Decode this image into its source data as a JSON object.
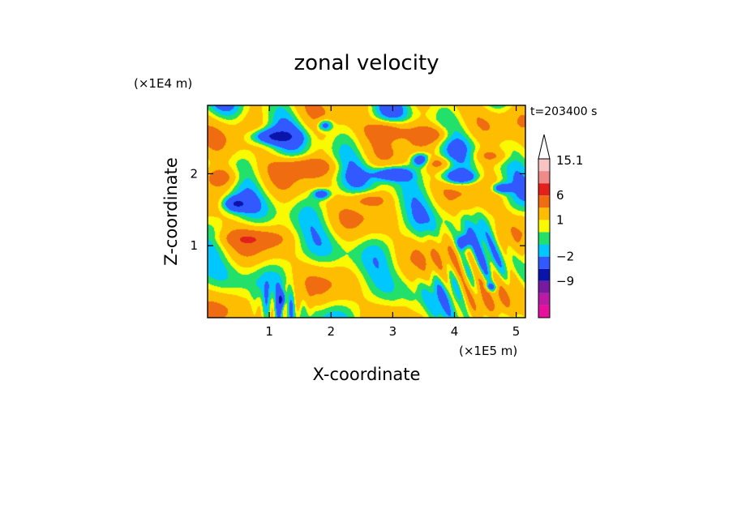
{
  "chart_data": {
    "type": "heatmap",
    "title": "zonal velocity",
    "xlabel": "X-coordinate",
    "ylabel": "Z-coordinate",
    "x_unit_label": "(×1E5 m)",
    "y_unit_label": "(×1E4 m)",
    "time_label": "t=203400 s",
    "xlim": [
      0,
      5.15
    ],
    "ylim": [
      0,
      2.95
    ],
    "x_ticks": [
      1,
      2,
      3,
      4,
      5
    ],
    "y_ticks": [
      1,
      2
    ],
    "colorbar": {
      "levels": [
        -15,
        -12,
        -9,
        -6,
        -2,
        -1,
        0,
        1,
        3,
        6,
        9,
        12,
        15.1
      ],
      "labels": [
        {
          "value": 15.1,
          "text": "15.1"
        },
        {
          "value": 6,
          "text": "6"
        },
        {
          "value": 1,
          "text": "1"
        },
        {
          "value": -2,
          "text": "−2"
        },
        {
          "value": -9,
          "text": "−9"
        }
      ],
      "colors": [
        "#e60f9e",
        "#bb1ba4",
        "#771a9f",
        "#0a14aa",
        "#3258ff",
        "#00c8ff",
        "#22e06a",
        "#f9f900",
        "#ffbd00",
        "#ef6d10",
        "#e2211c",
        "#ef8a8a",
        "#f7c4c4"
      ],
      "extend": "max"
    },
    "features": [
      {
        "kind": "neg",
        "x": 1.05,
        "z": 2.52,
        "rx": 0.35,
        "rz": 0.1,
        "v": -6
      },
      {
        "kind": "neg",
        "x": 1.9,
        "z": 2.68,
        "rx": 0.12,
        "rz": 0.08,
        "v": -5
      },
      {
        "kind": "neg",
        "x": 0.45,
        "z": 1.58,
        "rx": 0.2,
        "rz": 0.1,
        "v": -6
      },
      {
        "kind": "neg",
        "x": 1.85,
        "z": 1.72,
        "rx": 0.14,
        "rz": 0.07,
        "v": -5
      },
      {
        "kind": "neg",
        "x": 3.0,
        "z": 2.0,
        "rx": 0.3,
        "rz": 0.1,
        "v": -6
      },
      {
        "kind": "neg",
        "x": 3.45,
        "z": 2.2,
        "rx": 0.15,
        "rz": 0.1,
        "v": -6
      },
      {
        "kind": "neg",
        "x": 4.1,
        "z": 1.95,
        "rx": 0.3,
        "rz": 0.1,
        "v": -6
      },
      {
        "kind": "neg",
        "x": 4.75,
        "z": 1.8,
        "rx": 0.15,
        "rz": 0.07,
        "v": -5
      },
      {
        "kind": "neg",
        "x": 4.15,
        "z": 1.05,
        "rx": 0.1,
        "rz": 0.1,
        "v": -5
      },
      {
        "kind": "neg",
        "x": 1.2,
        "z": 0.25,
        "rx": 0.06,
        "rz": 0.1,
        "v": -5
      },
      {
        "kind": "neg",
        "x": 4.6,
        "z": 0.42,
        "rx": 0.1,
        "rz": 0.06,
        "v": -4
      },
      {
        "kind": "pos",
        "x": 2.95,
        "z": 2.62,
        "rx": 0.35,
        "rz": 0.14,
        "v": 5
      },
      {
        "kind": "pos",
        "x": 3.65,
        "z": 2.55,
        "rx": 0.3,
        "rz": 0.12,
        "v": 4
      },
      {
        "kind": "pos",
        "x": 1.6,
        "z": 2.1,
        "rx": 0.45,
        "rz": 0.12,
        "v": 4
      },
      {
        "kind": "pos",
        "x": 0.2,
        "z": 1.95,
        "rx": 0.3,
        "rz": 0.14,
        "v": 4
      },
      {
        "kind": "pos",
        "x": 2.6,
        "z": 1.65,
        "rx": 0.3,
        "rz": 0.1,
        "v": 3
      },
      {
        "kind": "pos",
        "x": 0.7,
        "z": 1.1,
        "rx": 0.5,
        "rz": 0.12,
        "v": 3
      },
      {
        "kind": "pos",
        "x": 4.6,
        "z": 2.25,
        "rx": 0.3,
        "rz": 0.1,
        "v": 3
      },
      {
        "kind": "pos",
        "x": 3.75,
        "z": 2.15,
        "rx": 0.2,
        "rz": 0.08,
        "v": 3
      }
    ]
  }
}
